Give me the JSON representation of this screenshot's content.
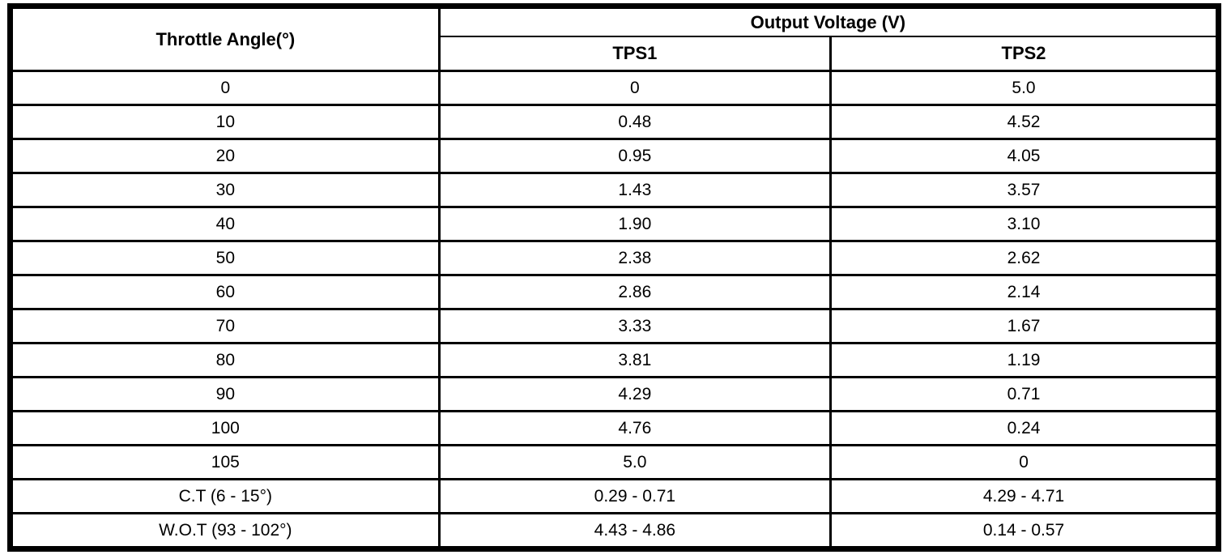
{
  "table": {
    "col1_header": "Throttle Angle(°)",
    "group_header": "Output Voltage (V)",
    "sub_headers": [
      "TPS1",
      "TPS2"
    ],
    "rows": [
      {
        "angle": "0",
        "tps1": "0",
        "tps2": "5.0"
      },
      {
        "angle": "10",
        "tps1": "0.48",
        "tps2": "4.52"
      },
      {
        "angle": "20",
        "tps1": "0.95",
        "tps2": "4.05"
      },
      {
        "angle": "30",
        "tps1": "1.43",
        "tps2": "3.57"
      },
      {
        "angle": "40",
        "tps1": "1.90",
        "tps2": "3.10"
      },
      {
        "angle": "50",
        "tps1": "2.38",
        "tps2": "2.62"
      },
      {
        "angle": "60",
        "tps1": "2.86",
        "tps2": "2.14"
      },
      {
        "angle": "70",
        "tps1": "3.33",
        "tps2": "1.67"
      },
      {
        "angle": "80",
        "tps1": "3.81",
        "tps2": "1.19"
      },
      {
        "angle": "90",
        "tps1": "4.29",
        "tps2": "0.71"
      },
      {
        "angle": "100",
        "tps1": "4.76",
        "tps2": "0.24"
      },
      {
        "angle": "105",
        "tps1": "5.0",
        "tps2": "0"
      },
      {
        "angle": "C.T (6 - 15°)",
        "tps1": "0.29 - 0.71",
        "tps2": "4.29 - 4.71"
      },
      {
        "angle": "W.O.T (93 - 102°)",
        "tps1": "4.43 - 4.86",
        "tps2": "0.14 - 0.57"
      }
    ]
  }
}
